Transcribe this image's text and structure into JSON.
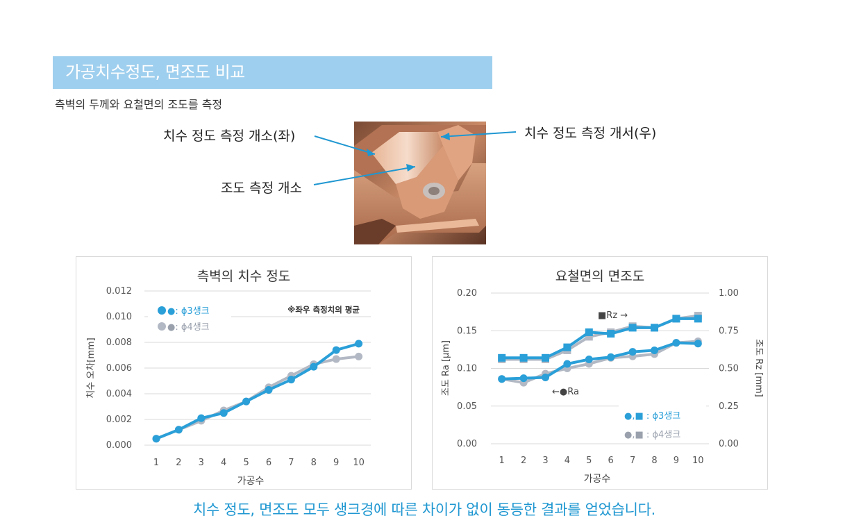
{
  "header": {
    "title": "가공치수정도, 면조도 비교",
    "subtitle": "측벽의 두께와 요철면의 조도를 측정"
  },
  "photo": {
    "callouts": {
      "left_wall": "치수 정도 측정 개소(좌)",
      "right_wall": "치수 정도 측정 개서(우)",
      "roughness": "조도 측정 개소"
    }
  },
  "conclusion": "치수 정도, 면조도 모두 생크경에 따른 차이가 없이 동등한 결과를 얻었습니다.",
  "colors": {
    "series_a": "#2a9fd8",
    "series_b": "#b3b9c4",
    "header": "#9fcfee"
  },
  "chart_data": [
    {
      "type": "line",
      "title": "측벽의 치수 정도",
      "xlabel": "가공수",
      "ylabel": "치수 오차[mm]",
      "x": [
        1,
        2,
        3,
        4,
        5,
        6,
        7,
        8,
        9,
        10
      ],
      "xticks": [
        "1",
        "2",
        "3",
        "4",
        "5",
        "6",
        "7",
        "8",
        "9",
        "10"
      ],
      "ylim": [
        0,
        0.012
      ],
      "yticks": [
        "0.000",
        "0.002",
        "0.004",
        "0.006",
        "0.008",
        "0.010",
        "0.012"
      ],
      "note": "※좌우 측정치의 평균",
      "grid": true,
      "legend_position": "top-left",
      "legend": [
        "●: ϕ3생크",
        "●: ϕ4생크"
      ],
      "series": [
        {
          "name": "ϕ3생크",
          "marker": "circle",
          "values": [
            0.0005,
            0.0012,
            0.0021,
            0.0025,
            0.0034,
            0.0043,
            0.0051,
            0.0061,
            0.0074,
            0.0079
          ]
        },
        {
          "name": "ϕ4생크",
          "marker": "circle",
          "values": [
            0.0005,
            0.0012,
            0.0019,
            0.0027,
            0.0034,
            0.0045,
            0.0054,
            0.0063,
            0.0067,
            0.0069
          ]
        }
      ]
    },
    {
      "type": "line",
      "title": "요철면의 면조도",
      "xlabel": "가공수",
      "ylabel_left": "조도 Ra [μm]",
      "ylabel_right": "조도 Rz [mm]",
      "x": [
        1,
        2,
        3,
        4,
        5,
        6,
        7,
        8,
        9,
        10
      ],
      "xticks": [
        "1",
        "2",
        "3",
        "4",
        "5",
        "6",
        "7",
        "8",
        "9",
        "10"
      ],
      "ylim_left": [
        0,
        0.2
      ],
      "ylim_right": [
        0,
        1.0
      ],
      "yticks_left": [
        "0.00",
        "0.05",
        "0.10",
        "0.15",
        "0.20"
      ],
      "yticks_right": [
        "0.00",
        "0.25",
        "0.50",
        "0.75",
        "1.00"
      ],
      "rz_annotation": "■Rz →",
      "ra_annotation": "←●Ra",
      "grid": true,
      "legend_position": "bottom-right",
      "legend": [
        "●,■ : ϕ3생크",
        "●,■ : ϕ4생크"
      ],
      "series": [
        {
          "name": "Ra ϕ3생크",
          "axis": "left",
          "marker": "circle",
          "values": [
            0.086,
            0.087,
            0.088,
            0.106,
            0.112,
            0.115,
            0.122,
            0.124,
            0.134,
            0.133
          ]
        },
        {
          "name": "Ra ϕ4생크",
          "axis": "left",
          "marker": "circle",
          "values": [
            0.086,
            0.081,
            0.093,
            0.1,
            0.106,
            0.114,
            0.116,
            0.119,
            0.134,
            0.136
          ]
        },
        {
          "name": "Rz ϕ3생크",
          "axis": "right",
          "marker": "square",
          "values": [
            0.57,
            0.57,
            0.57,
            0.64,
            0.74,
            0.73,
            0.77,
            0.77,
            0.83,
            0.83
          ]
        },
        {
          "name": "Rz ϕ4생크",
          "axis": "right",
          "marker": "square",
          "values": [
            0.56,
            0.56,
            0.56,
            0.62,
            0.71,
            0.74,
            0.78,
            0.77,
            0.83,
            0.85
          ]
        }
      ]
    }
  ]
}
